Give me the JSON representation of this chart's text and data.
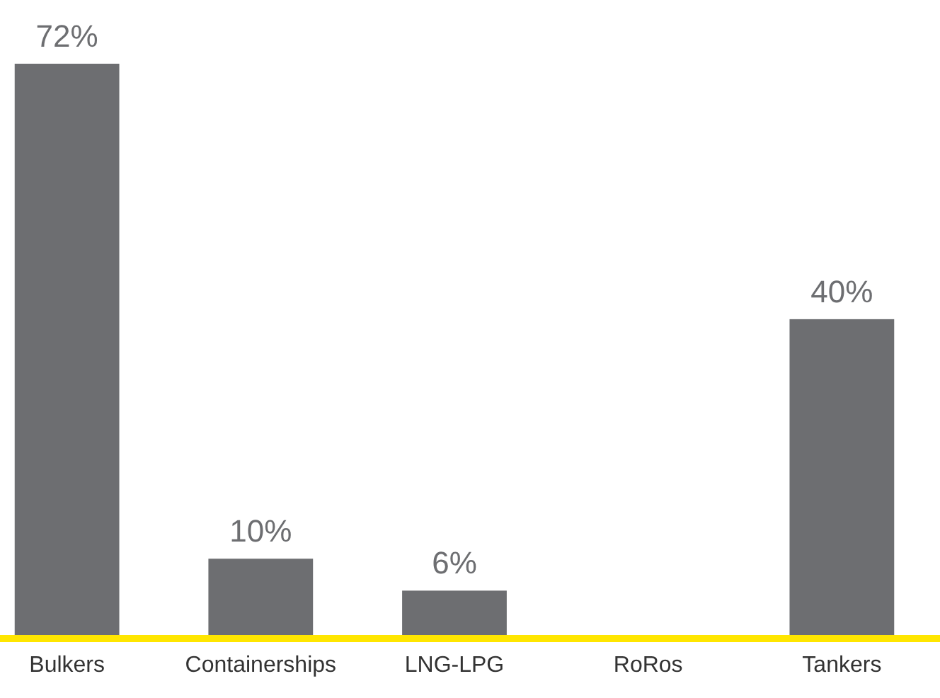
{
  "chart_data": {
    "type": "bar",
    "categories": [
      "Bulkers",
      "Containerships",
      "LNG-LPG",
      "RoRos",
      "Tankers"
    ],
    "values": [
      72,
      10,
      6,
      0,
      40
    ],
    "value_labels": [
      "72%",
      "10%",
      "6%",
      null,
      "40%"
    ],
    "color": "#6d6e71"
  }
}
